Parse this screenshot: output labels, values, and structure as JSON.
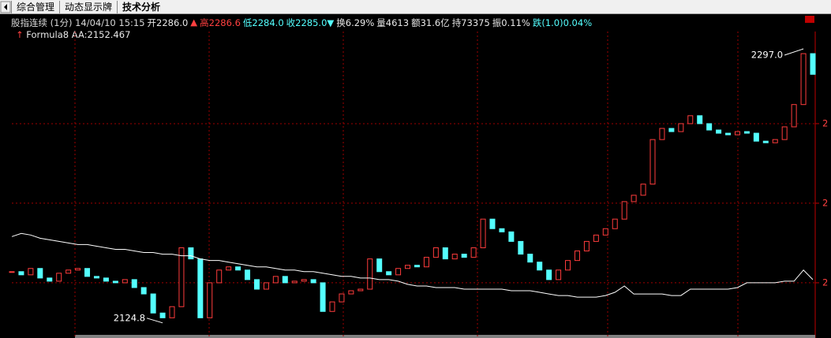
{
  "tabs": [
    "综合管理",
    "动态显示牌",
    "技术分析"
  ],
  "active_tab": 2,
  "info": [
    {
      "text": "股指连续 (1分) 14/04/10 15:15",
      "color": "#d8d8d8"
    },
    {
      "text": "开2286.0",
      "color": "#e8e8e8"
    },
    {
      "text": "▲",
      "color": "#ff4040"
    },
    {
      "text": "高2286.6",
      "color": "#ff4040"
    },
    {
      "text": "低2284.0",
      "color": "#54ffff"
    },
    {
      "text": "收2285.0▼",
      "color": "#54ffff"
    },
    {
      "text": "换6.29%",
      "color": "#e8e8e8"
    },
    {
      "text": "量4613",
      "color": "#e8e8e8"
    },
    {
      "text": "额31.6亿",
      "color": "#e8e8e8"
    },
    {
      "text": "持73375",
      "color": "#e8e8e8"
    },
    {
      "text": "振0.11%",
      "color": "#e8e8e8"
    },
    {
      "text": "跌(1.0)0.04%",
      "color": "#54ffff"
    }
  ],
  "formula": {
    "arrow": "↑",
    "name": "Formula8",
    "label": "AA:2152.467"
  },
  "chart_data": {
    "type": "candlestick",
    "up_color": "#ff3c3c",
    "down_color": "#54ffff",
    "line_color": "#ffffff",
    "ylim": [
      2115.3,
      2307.9
    ],
    "yticks": [
      {
        "value": 2150,
        "label": "2"
      },
      {
        "value": 2200,
        "label": "2"
      },
      {
        "value": 2250,
        "label": "2"
      }
    ],
    "close": [
      2157,
      2155,
      2159,
      2153,
      2151,
      2156,
      2158,
      2159,
      2154,
      2153,
      2151,
      2150,
      2152,
      2147,
      2143,
      2131,
      2128,
      2135,
      2172,
      2165,
      2128,
      2150,
      2158,
      2160,
      2158,
      2152,
      2146,
      2150,
      2154,
      2150,
      2151,
      2152,
      2150,
      2132,
      2138,
      2143,
      2145,
      2146,
      2165,
      2157,
      2155,
      2159,
      2161,
      2160,
      2166,
      2172,
      2165,
      2168,
      2166,
      2172,
      2190,
      2184,
      2182,
      2176,
      2168,
      2163,
      2158,
      2152,
      2158,
      2164,
      2170,
      2176,
      2180,
      2184,
      2190,
      2201,
      2205,
      2212,
      2240,
      2247,
      2245,
      2250,
      2255,
      2250,
      2246,
      2244,
      2243,
      2245,
      2244,
      2239,
      2238,
      2240,
      2248,
      2262,
      2294,
      2281
    ],
    "aa": [
      2179,
      2181,
      2180,
      2178,
      2177,
      2176,
      2175,
      2174,
      2174,
      2173,
      2172,
      2171,
      2171,
      2170,
      2169,
      2169,
      2168,
      2168,
      2167,
      2167,
      2165,
      2164,
      2164,
      2163,
      2162,
      2161,
      2160,
      2160,
      2159,
      2158,
      2158,
      2157,
      2157,
      2156,
      2155,
      2154,
      2154,
      2153,
      2153,
      2152,
      2152,
      2151,
      2149,
      2148,
      2148,
      2147,
      2147,
      2147,
      2146,
      2146,
      2146,
      2146,
      2146,
      2145,
      2145,
      2145,
      2144,
      2143,
      2142,
      2142,
      2141,
      2141,
      2141,
      2142,
      2144,
      2148,
      2143,
      2143,
      2143,
      2143,
      2142,
      2142,
      2146,
      2146,
      2146,
      2146,
      2146,
      2147,
      2150,
      2150,
      2150,
      2150,
      2151,
      2151,
      2158,
      2152
    ],
    "annotations": [
      {
        "label": "2297.0",
        "value": 2297.0,
        "index": 84
      },
      {
        "label": "2124.8",
        "value": 2124.8,
        "index": 16
      }
    ]
  }
}
